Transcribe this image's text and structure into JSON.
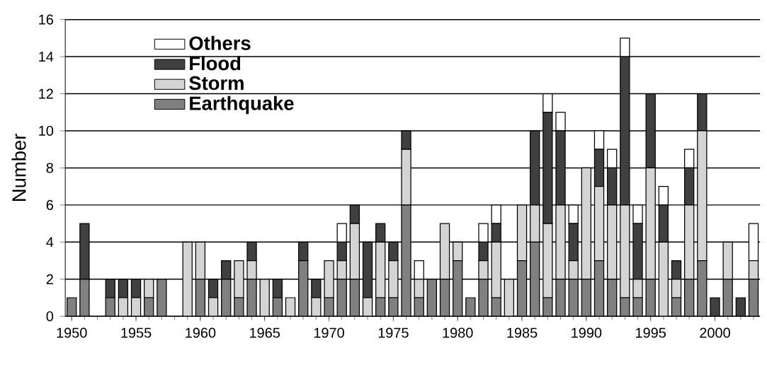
{
  "chart_data": {
    "type": "bar",
    "stacked": true,
    "ylabel": "Number",
    "x": [
      1950,
      1951,
      1952,
      1953,
      1954,
      1955,
      1956,
      1957,
      1958,
      1959,
      1960,
      1961,
      1962,
      1963,
      1964,
      1965,
      1966,
      1967,
      1968,
      1969,
      1970,
      1971,
      1972,
      1973,
      1974,
      1975,
      1976,
      1977,
      1978,
      1979,
      1980,
      1981,
      1982,
      1983,
      1984,
      1985,
      1986,
      1987,
      1988,
      1989,
      1990,
      1991,
      1992,
      1993,
      1994,
      1995,
      1996,
      1997,
      1998,
      1999,
      2000,
      2001,
      2002,
      2003
    ],
    "series": [
      {
        "name": "Earthquake",
        "color": "#808080",
        "values": [
          1,
          2,
          0,
          1,
          0,
          0,
          1,
          2,
          0,
          0,
          2,
          0,
          2,
          1,
          2,
          0,
          1,
          0,
          3,
          0,
          1,
          2,
          2,
          0,
          1,
          1,
          6,
          1,
          2,
          2,
          3,
          1,
          2,
          1,
          0,
          3,
          4,
          1,
          2,
          2,
          2,
          3,
          2,
          1,
          1,
          2,
          0,
          1,
          2,
          3,
          0,
          2,
          0,
          2
        ]
      },
      {
        "name": "Storm",
        "color": "#d4d4d4",
        "values": [
          0,
          0,
          0,
          0,
          1,
          1,
          1,
          0,
          0,
          4,
          2,
          1,
          0,
          2,
          1,
          2,
          0,
          1,
          0,
          1,
          2,
          1,
          3,
          1,
          3,
          2,
          3,
          1,
          0,
          3,
          1,
          0,
          1,
          3,
          2,
          3,
          2,
          4,
          4,
          1,
          6,
          4,
          4,
          5,
          1,
          6,
          4,
          1,
          4,
          7,
          0,
          2,
          0,
          1
        ]
      },
      {
        "name": "Flood",
        "color": "#404040",
        "values": [
          0,
          3,
          0,
          1,
          1,
          1,
          0,
          0,
          0,
          0,
          0,
          1,
          1,
          0,
          1,
          0,
          1,
          0,
          1,
          1,
          0,
          1,
          1,
          3,
          1,
          1,
          1,
          0,
          0,
          0,
          0,
          0,
          1,
          1,
          0,
          0,
          4,
          6,
          4,
          2,
          0,
          2,
          2,
          8,
          3,
          4,
          2,
          1,
          2,
          2,
          1,
          0,
          1,
          0
        ]
      },
      {
        "name": "Others",
        "color": "#ffffff",
        "values": [
          0,
          0,
          0,
          0,
          0,
          0,
          0,
          0,
          0,
          0,
          0,
          0,
          0,
          0,
          0,
          0,
          0,
          0,
          0,
          0,
          0,
          1,
          0,
          0,
          0,
          0,
          0,
          1,
          0,
          0,
          0,
          0,
          1,
          1,
          0,
          0,
          0,
          1,
          1,
          1,
          0,
          1,
          1,
          1,
          1,
          0,
          1,
          0,
          1,
          0,
          0,
          0,
          0,
          2
        ]
      }
    ],
    "xlim": [
      1949.5,
      2003.5
    ],
    "xticks": [
      1950,
      1955,
      1960,
      1965,
      1970,
      1975,
      1980,
      1985,
      1990,
      1995,
      2000
    ],
    "ylim": [
      0,
      16
    ],
    "yticks": [
      0,
      2,
      4,
      6,
      8,
      10,
      12,
      14,
      16
    ],
    "grid": "y",
    "legend": "top left"
  }
}
